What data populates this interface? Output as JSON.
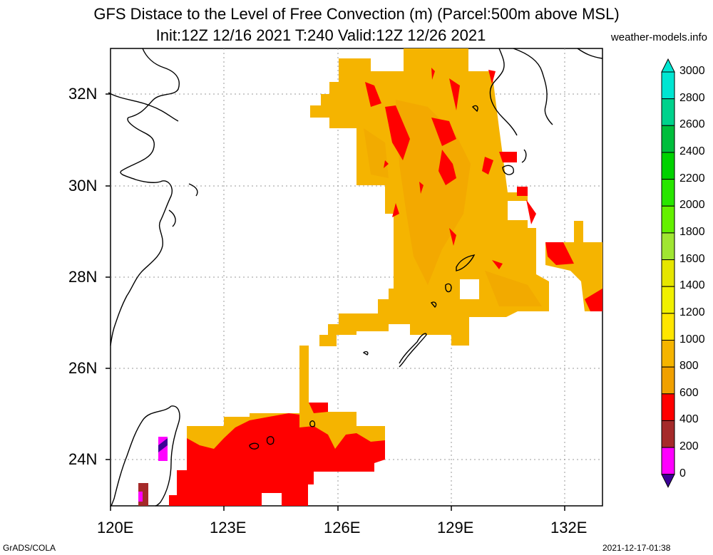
{
  "title_line1": "GFS Distace to the Level of Free Convection (m) (Parcel:500m above MSL)",
  "title_line2": "Init:12Z 12/16 2021 T:240 Valid:12Z 12/26 2021",
  "site": "weather-models.info",
  "footer_left": "GrADS/COLA",
  "footer_right": "2021-12-17-01:38",
  "lon_labels": [
    "120E",
    "123E",
    "126E",
    "129E",
    "132E"
  ],
  "lat_labels": [
    "32N",
    "30N",
    "28N",
    "26N",
    "24N"
  ],
  "colorbar": {
    "labels": [
      "3000",
      "2800",
      "2600",
      "2400",
      "2200",
      "2000",
      "1800",
      "1600",
      "1400",
      "1200",
      "1000",
      "800",
      "600",
      "400",
      "200",
      "0"
    ],
    "colors": [
      "#00e6d2",
      "#00d28c",
      "#00be3c",
      "#00d200",
      "#28e600",
      "#64f000",
      "#a0e632",
      "#e6e600",
      "#f0f000",
      "#ffe600",
      "#f5b400",
      "#f0a000",
      "#ff0000",
      "#a52a2a",
      "#ff00ff",
      "#3c0096"
    ]
  }
}
